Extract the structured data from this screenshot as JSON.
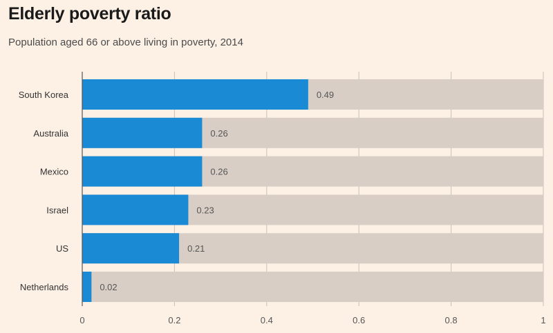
{
  "title": "Elderly poverty ratio",
  "subtitle": "Population aged 66 or above living in poverty, 2014",
  "chart_data": {
    "type": "bar",
    "orientation": "horizontal",
    "categories": [
      "South Korea",
      "Australia",
      "Mexico",
      "Israel",
      "US",
      "Netherlands"
    ],
    "values": [
      0.49,
      0.26,
      0.26,
      0.23,
      0.21,
      0.02
    ],
    "value_labels": [
      "0.49",
      "0.26",
      "0.26",
      "0.23",
      "0.21",
      "0.02"
    ],
    "xlim": [
      0,
      1
    ],
    "xticks": [
      0,
      0.2,
      0.4,
      0.6,
      0.8,
      1
    ],
    "xtick_labels": [
      "0",
      "0.2",
      "0.4",
      "0.6",
      "0.8",
      "1"
    ],
    "grid": true,
    "colors": {
      "bar": "#1a8ad4",
      "track": "#d9cec6",
      "grid": "#c9bfb6",
      "axis": "#555555"
    }
  }
}
